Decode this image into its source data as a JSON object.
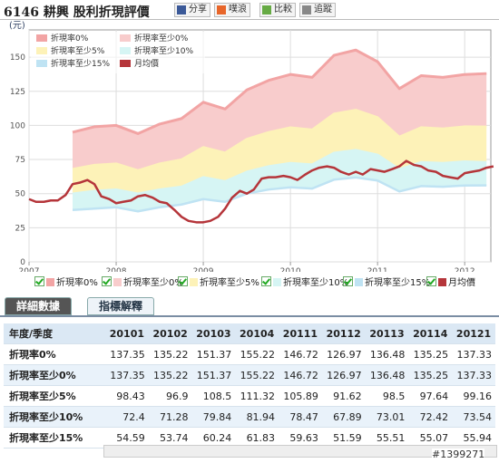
{
  "header": {
    "title": "6146 耕興 股利折現評價",
    "buttons": [
      "分享",
      "噗浪",
      "比較",
      "追蹤"
    ]
  },
  "chart_data": {
    "type": "area",
    "y_label": "(元)",
    "legend": "top-left",
    "grid": true,
    "xlim": [
      2007,
      2012.3
    ],
    "xticks": [
      2007,
      2008,
      2009,
      2010,
      2011,
      2012
    ],
    "ylim": [
      0,
      170
    ],
    "yticks": [
      0,
      25,
      50,
      75,
      100,
      125,
      150
    ],
    "x": [
      2007.5,
      2007.75,
      2008,
      2008.25,
      2008.5,
      2008.75,
      2009,
      2009.25,
      2009.5,
      2009.75,
      2010,
      2010.25,
      2010.5,
      2010.75,
      2011,
      2011.25,
      2011.5,
      2011.75,
      2012,
      2012.25
    ],
    "series": [
      {
        "name": "折現率0%",
        "color": "#f2a4a4",
        "values": [
          95,
          99,
          100,
          94,
          101,
          105,
          117,
          112,
          126,
          133,
          137.35,
          135.22,
          151.37,
          155.22,
          146.72,
          126.97,
          136.48,
          135.25,
          137.33,
          138
        ]
      },
      {
        "name": "折現率至少0%",
        "color": "#f8cccc",
        "values": [
          95,
          99,
          100,
          94,
          101,
          105,
          117,
          112,
          126,
          133,
          137.35,
          135.22,
          151.37,
          155.22,
          146.72,
          126.97,
          136.48,
          135.25,
          137.33,
          138
        ]
      },
      {
        "name": "折現率至少5%",
        "color": "#fdf2b8",
        "values": [
          68,
          71,
          72,
          67,
          72,
          75,
          84,
          80,
          90,
          95,
          98.43,
          96.9,
          108.5,
          111.32,
          105.89,
          91.62,
          98.5,
          97.64,
          99.16,
          99
        ]
      },
      {
        "name": "折現率至少10%",
        "color": "#d6f5f4",
        "values": [
          50,
          52,
          53,
          50,
          53,
          55,
          62,
          59,
          66,
          70,
          72.4,
          71.28,
          79.84,
          81.94,
          78.47,
          67.89,
          73.01,
          72.42,
          73.54,
          73
        ]
      },
      {
        "name": "折現率至少15%",
        "color": "#bfe3f3",
        "values": [
          38,
          39,
          40,
          37,
          40,
          42,
          46,
          44,
          50,
          53,
          54.59,
          53.74,
          60.24,
          61.83,
          59.63,
          51.59,
          55.51,
          55.07,
          55.94,
          56
        ]
      },
      {
        "name": "月均價",
        "color": "#b5353a",
        "type": "line",
        "x": [
          2007,
          2007.08,
          2007.17,
          2007.25,
          2007.33,
          2007.42,
          2007.5,
          2007.58,
          2007.67,
          2007.75,
          2007.83,
          2007.92,
          2008,
          2008.08,
          2008.17,
          2008.25,
          2008.33,
          2008.42,
          2008.5,
          2008.58,
          2008.67,
          2008.75,
          2008.83,
          2008.92,
          2009,
          2009.08,
          2009.17,
          2009.25,
          2009.33,
          2009.42,
          2009.5,
          2009.58,
          2009.67,
          2009.75,
          2009.83,
          2009.92,
          2010,
          2010.08,
          2010.17,
          2010.25,
          2010.33,
          2010.42,
          2010.5,
          2010.58,
          2010.67,
          2010.75,
          2010.83,
          2010.92,
          2011,
          2011.08,
          2011.17,
          2011.25,
          2011.33,
          2011.42,
          2011.5,
          2011.58,
          2011.67,
          2011.75,
          2011.83,
          2011.92,
          2012,
          2012.08,
          2012.17,
          2012.25,
          2012.33
        ],
        "values": [
          46,
          44,
          44,
          45,
          45,
          49,
          57,
          58,
          60,
          57,
          48,
          46,
          43,
          44,
          45,
          48,
          49,
          47,
          44,
          43,
          38,
          33,
          30,
          29,
          29,
          30,
          33,
          39,
          47,
          52,
          50,
          53,
          61,
          62,
          62,
          63,
          62,
          60,
          64,
          67,
          69,
          70,
          69,
          66,
          64,
          66,
          64,
          68,
          67,
          66,
          68,
          70,
          74,
          71,
          70,
          67,
          66,
          63,
          62,
          61,
          65,
          66,
          67,
          69,
          70
        ]
      }
    ]
  },
  "tabs": [
    "詳細數據",
    "指標解釋"
  ],
  "table": {
    "header": [
      "年度/季度",
      "20101",
      "20102",
      "20103",
      "20104",
      "20111",
      "20112",
      "20113",
      "20114",
      "20121"
    ],
    "rows": [
      [
        "折現率0%",
        137.35,
        135.22,
        151.37,
        155.22,
        146.72,
        126.97,
        136.48,
        135.25,
        137.33
      ],
      [
        "折現率至少0%",
        137.35,
        135.22,
        151.37,
        155.22,
        146.72,
        126.97,
        136.48,
        135.25,
        137.33
      ],
      [
        "折現率至少5%",
        98.43,
        96.9,
        108.5,
        111.32,
        105.89,
        91.62,
        98.5,
        97.64,
        99.16
      ],
      [
        "折現率至少10%",
        72.4,
        71.28,
        79.84,
        81.94,
        78.47,
        67.89,
        73.01,
        72.42,
        73.54
      ],
      [
        "折現率至少15%",
        54.59,
        53.74,
        60.24,
        61.83,
        59.63,
        51.59,
        55.51,
        55.07,
        55.94
      ]
    ]
  },
  "watermark": "#1399271"
}
